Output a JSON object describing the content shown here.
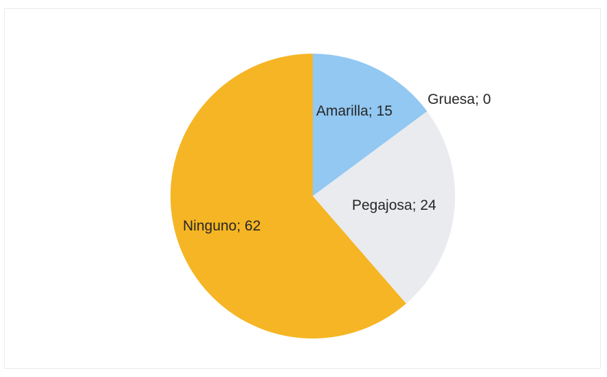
{
  "chart_data": {
    "type": "pie",
    "title": "",
    "slices": [
      {
        "label": "Amarilla",
        "value": 15,
        "display": "Amarilla; 15",
        "color": "#92C8F2"
      },
      {
        "label": "Gruesa",
        "value": 0,
        "display": "Gruesa; 0",
        "color": "#A5A5A5"
      },
      {
        "label": "Pegajosa",
        "value": 24,
        "display": "Pegajosa; 24",
        "color": "#E9EBEE"
      },
      {
        "label": "Ninguno",
        "value": 62,
        "display": "Ninguno; 62",
        "color": "#F5B524"
      }
    ],
    "start_angle_deg": 0,
    "direction": "clockwise",
    "legend": "none",
    "data_labels": "category; value"
  }
}
